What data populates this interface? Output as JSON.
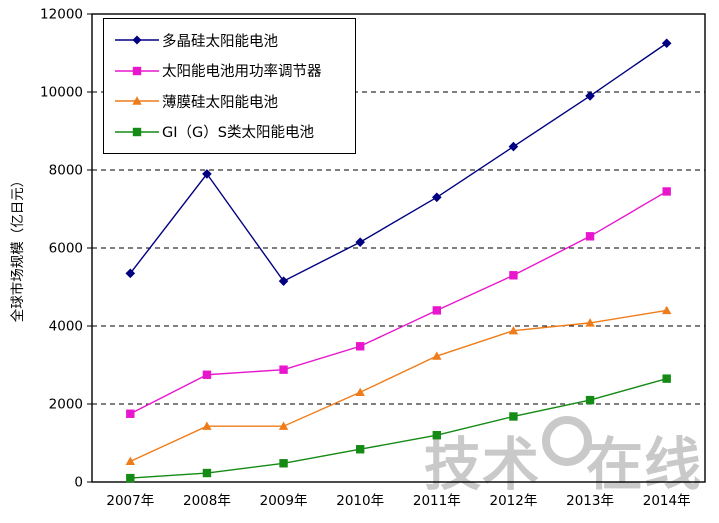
{
  "watermark": {
    "prefix": "技术",
    "suffix": "在线",
    "bang": "!"
  },
  "chart_data": {
    "type": "line",
    "title": "",
    "xlabel": "",
    "ylabel": "全球市场规模（亿日元）",
    "ylim": [
      0,
      12000
    ],
    "ytick_step": 2000,
    "grid": "horizontal-dashed",
    "legend_position": "top-left-inside",
    "categories": [
      "2007年",
      "2008年",
      "2009年",
      "2010年",
      "2011年",
      "2012年",
      "2013年",
      "2014年"
    ],
    "series": [
      {
        "name": "多晶硅太阳能电池",
        "marker": "diamond",
        "color": "#000080",
        "values": [
          5350,
          7900,
          5150,
          6150,
          7300,
          8600,
          9900,
          11250
        ]
      },
      {
        "name": "太阳能电池用功率调节器",
        "marker": "square",
        "color": "#e816cd",
        "values": [
          1750,
          2750,
          2880,
          3480,
          4400,
          5300,
          6300,
          7450
        ]
      },
      {
        "name": "薄膜硅太阳能电池",
        "marker": "triangle",
        "color": "#ee7c1a",
        "values": [
          530,
          1430,
          1430,
          2300,
          3230,
          3880,
          4080,
          4400
        ]
      },
      {
        "name": "GI（G）S类太阳能电池",
        "marker": "square",
        "color": "#158a15",
        "values": [
          100,
          230,
          480,
          840,
          1200,
          1680,
          2100,
          2650
        ]
      }
    ]
  }
}
